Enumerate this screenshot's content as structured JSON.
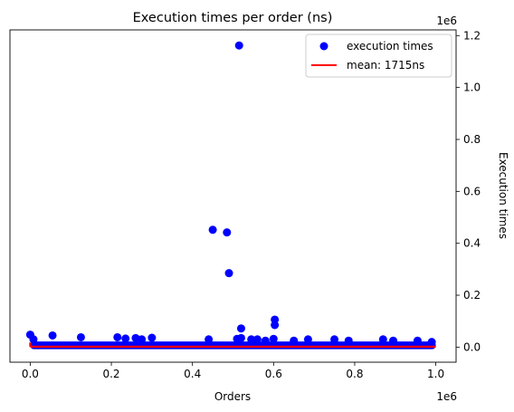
{
  "chart_data": {
    "type": "scatter",
    "title": "Execution times per order (ns)",
    "xlabel": "Orders",
    "ylabel": "Execution times",
    "y_axis_side": "right",
    "x_offset_text": "1e6",
    "y_offset_text": "1e6",
    "xlim": [
      -0.05,
      1.05
    ],
    "ylim": [
      -0.058,
      1.222
    ],
    "x_ticks": [
      0.0,
      0.2,
      0.4,
      0.6,
      0.8,
      1.0
    ],
    "x_tick_labels": [
      "0.0",
      "0.2",
      "0.4",
      "0.6",
      "0.8",
      "1.0"
    ],
    "y_ticks": [
      0.0,
      0.2,
      0.4,
      0.6,
      0.8,
      1.0,
      1.2
    ],
    "y_tick_labels": [
      "0.0",
      "0.2",
      "0.4",
      "0.6",
      "0.8",
      "1.0",
      "1.2"
    ],
    "grid": false,
    "legend_position": "top-right",
    "series": [
      {
        "name": "execution times",
        "kind": "scatter",
        "color": "#0000ff",
        "x": [
          0.0,
          0.008,
          0.055,
          0.125,
          0.215,
          0.235,
          0.26,
          0.275,
          0.3,
          0.44,
          0.51,
          0.52,
          0.545,
          0.56,
          0.58,
          0.6,
          0.65,
          0.685,
          0.75,
          0.785,
          0.87,
          0.895,
          0.955,
          0.99,
          0.45,
          0.485,
          0.49,
          0.515,
          0.52,
          0.603,
          0.603
        ],
        "y": [
          0.048,
          0.03,
          0.045,
          0.038,
          0.038,
          0.033,
          0.035,
          0.03,
          0.036,
          0.03,
          0.032,
          0.035,
          0.03,
          0.03,
          0.025,
          0.032,
          0.025,
          0.03,
          0.03,
          0.025,
          0.03,
          0.025,
          0.025,
          0.02,
          0.452,
          0.442,
          0.285,
          1.162,
          0.072,
          0.106,
          0.085
        ]
      },
      {
        "name": "mean: 1715ns",
        "kind": "line",
        "color": "#ff0000",
        "x": [
          0.0,
          1.0
        ],
        "y": [
          0.001715,
          0.001715
        ]
      }
    ]
  }
}
